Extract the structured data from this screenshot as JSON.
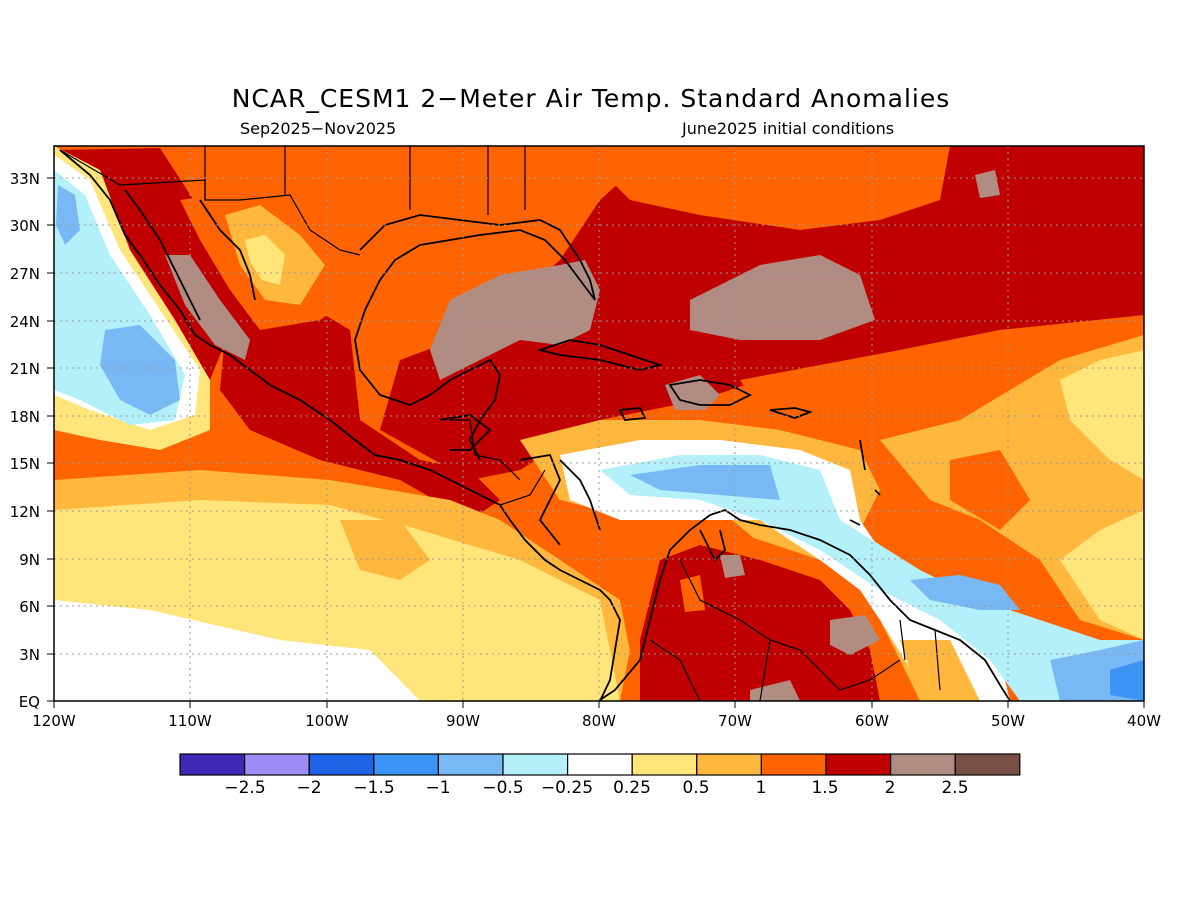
{
  "title": "NCAR_CESM1 2−Meter Air Temp. Standard Anomalies",
  "subtitle_left": "Sep2025−Nov2025",
  "subtitle_right": "June2025 initial conditions",
  "lat_labels": [
    "33N",
    "30N",
    "27N",
    "24N",
    "21N",
    "18N",
    "15N",
    "12N",
    "9N",
    "6N",
    "3N",
    "EQ"
  ],
  "lon_labels": [
    "120W",
    "110W",
    "100W",
    "90W",
    "80W",
    "70W",
    "60W",
    "50W",
    "40W"
  ],
  "colorbar": {
    "labels": [
      "−2.5",
      "−2",
      "−1.5",
      "−1",
      "−0.5",
      "−0.25",
      "0.25",
      "0.5",
      "1",
      "1.5",
      "2",
      "2.5"
    ],
    "colors": [
      "#3d27b5",
      "#9e8cf5",
      "#1f63e6",
      "#3c95f5",
      "#78b9f5",
      "#b4f0fa",
      "#ffffff",
      "#ffe57a",
      "#ffb73e",
      "#ff6400",
      "#c00000",
      "#b08c82",
      "#7a5046"
    ]
  },
  "chart_data": {
    "type": "heatmap",
    "title": "NCAR_CESM1 2−Meter Air Temp. Standard Anomalies",
    "period": "Sep2025−Nov2025",
    "initial_conditions": "June2025 initial conditions",
    "lon_range": [
      -120,
      -40
    ],
    "lat_range": [
      0,
      35
    ],
    "grid": true,
    "levels": [
      -2.5,
      -2,
      -1.5,
      -1,
      -0.5,
      -0.25,
      0.25,
      0.5,
      1,
      1.5,
      2,
      2.5
    ]
  }
}
